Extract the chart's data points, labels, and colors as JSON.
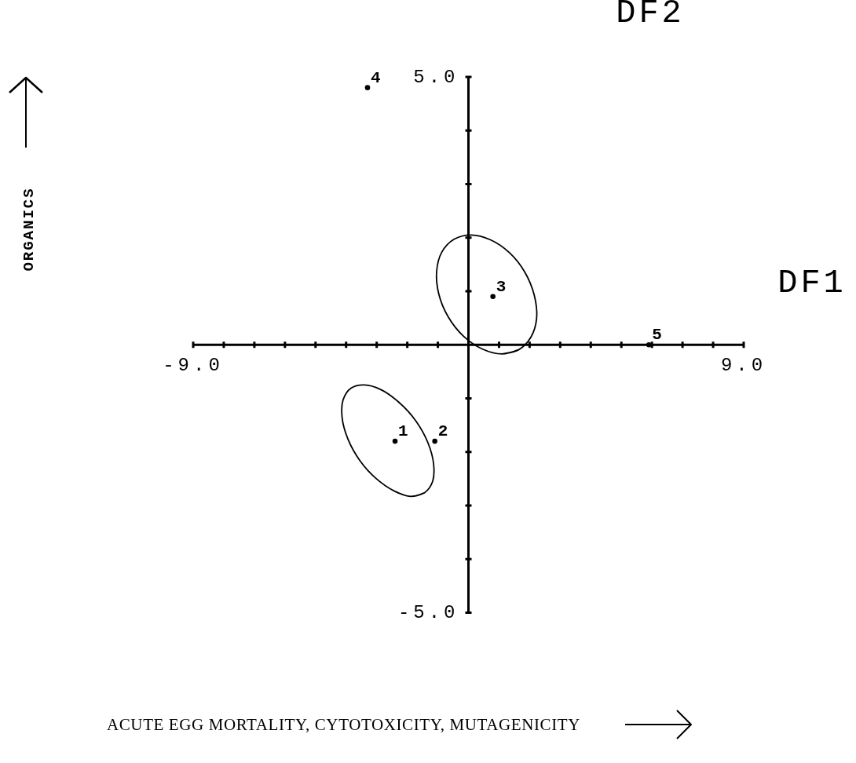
{
  "chart_data": {
    "type": "scatter",
    "xlabel": "DF1",
    "ylabel": "DF2",
    "annotations": [
      "ACUTE EGG MORTALITY, CYTOTOXICITY, MUTAGENICITY",
      "ORGANICS"
    ],
    "xlim": [
      -9,
      9
    ],
    "ylim": [
      -5,
      5
    ],
    "xticks": [
      {
        "value": -9,
        "label": "-9.0"
      },
      {
        "value": -8,
        "label": null
      },
      {
        "value": -7,
        "label": null
      },
      {
        "value": -6,
        "label": null
      },
      {
        "value": -5,
        "label": null
      },
      {
        "value": -4,
        "label": null
      },
      {
        "value": -3,
        "label": null
      },
      {
        "value": -2,
        "label": null
      },
      {
        "value": -1,
        "label": null
      },
      {
        "value": 1,
        "label": null
      },
      {
        "value": 2,
        "label": null
      },
      {
        "value": 3,
        "label": null
      },
      {
        "value": 4,
        "label": null
      },
      {
        "value": 5,
        "label": null
      },
      {
        "value": 6,
        "label": null
      },
      {
        "value": 7,
        "label": null
      },
      {
        "value": 8,
        "label": null
      },
      {
        "value": 9,
        "label": "9.0"
      }
    ],
    "yticks": [
      {
        "value": -5,
        "label": "-5.0"
      },
      {
        "value": -4,
        "label": null
      },
      {
        "value": -3,
        "label": null
      },
      {
        "value": -2,
        "label": null
      },
      {
        "value": -1,
        "label": null
      },
      {
        "value": 1,
        "label": null
      },
      {
        "value": 2,
        "label": null
      },
      {
        "value": 3,
        "label": null
      },
      {
        "value": 4,
        "label": null
      },
      {
        "value": 5,
        "label": "5.0"
      }
    ],
    "marker": "circle",
    "series": [
      {
        "name": "1",
        "color": "#000000",
        "x": [
          -2.4
        ],
        "values": [
          -1.8
        ]
      },
      {
        "name": "2",
        "color": "#000000",
        "x": [
          -1.1
        ],
        "values": [
          -1.8
        ]
      },
      {
        "name": "3",
        "color": "#000000",
        "x": [
          0.8
        ],
        "values": [
          0.9
        ]
      },
      {
        "name": "4",
        "color": "#000000",
        "x": [
          -3.3
        ],
        "values": [
          4.8
        ]
      },
      {
        "name": "5",
        "color": "#000000",
        "x": [
          5.9
        ],
        "values": [
          0.0
        ]
      },
      {
        "type": "line",
        "marker": "none",
        "color": "#000000",
        "x": [
          1.65,
          1.1,
          0.46,
          -0.16,
          -0.66,
          -0.97,
          -1.04,
          -0.87,
          -0.47,
          0.09,
          0.72,
          1.34,
          1.84,
          2.15,
          2.23,
          2.05,
          1.65,
          1.1
        ],
        "values": [
          -0.09,
          -0.17,
          -0.08,
          0.16,
          0.52,
          0.95,
          1.37,
          1.73,
          1.97,
          2.05,
          1.96,
          1.72,
          1.36,
          0.93,
          0.5,
          0.15,
          -0.09,
          -0.17
        ]
      },
      {
        "type": "line",
        "marker": "none",
        "color": "#000000",
        "x": [
          -1.43,
          -1.87,
          -2.42,
          -3.01,
          -3.55,
          -3.94,
          -4.13,
          -4.1,
          -3.84,
          -3.4,
          -2.85,
          -2.26,
          -1.72,
          -1.33,
          -1.14,
          -1.17,
          -1.43,
          -1.87
        ],
        "values": [
          -2.76,
          -2.83,
          -2.73,
          -2.5,
          -2.16,
          -1.76,
          -1.36,
          -1.03,
          -0.81,
          -0.75,
          -0.84,
          -1.08,
          -1.42,
          -1.82,
          -2.22,
          -2.55,
          -2.76,
          -2.83
        ]
      }
    ]
  }
}
